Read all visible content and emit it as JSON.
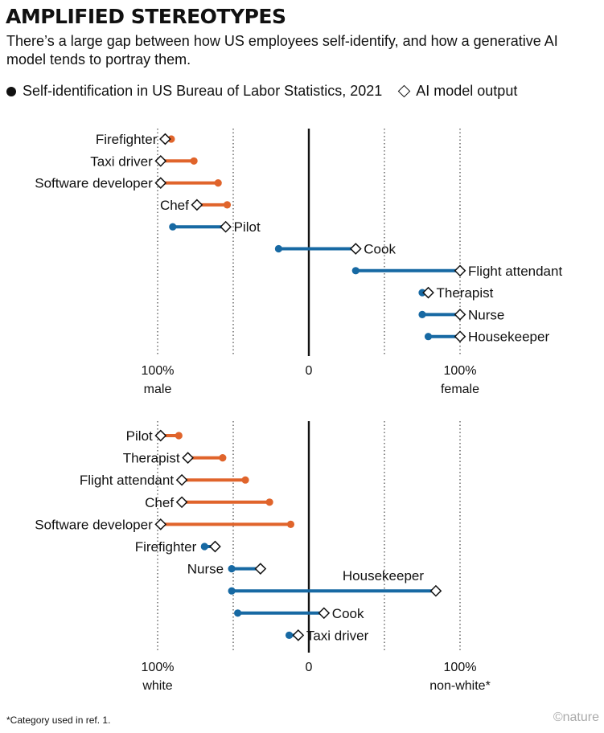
{
  "title": "AMPLIFIED STEREOTYPES",
  "subtitle": "There’s a large gap between how US employees self-identify, and how a generative AI model tends to portray them.",
  "legend": {
    "bls": "Self-identification in US Bureau of Labor Statistics, 2021",
    "ai": "AI model output"
  },
  "colors": {
    "overrepresented_male_white": "#e0642b",
    "overrepresented_female_nonwhite": "#1769a3",
    "ink": "#111111",
    "grid": "#333333"
  },
  "footnote": "*Category used in ref. 1.",
  "credit": "©nature",
  "chart_data": [
    {
      "type": "dumbbell",
      "axis": {
        "min": -100,
        "max": 100,
        "ticks": [
          -100,
          -50,
          0,
          50,
          100
        ]
      },
      "tick_labels": [
        {
          "value": -100,
          "line1": "100%",
          "line2": "male"
        },
        {
          "value": 0,
          "line1": "0",
          "line2": ""
        },
        {
          "value": 100,
          "line1": "100%",
          "line2": "female"
        }
      ],
      "rows": [
        {
          "label": "Firefighter",
          "bls": -91,
          "ai": -95,
          "label_side": "left"
        },
        {
          "label": "Taxi driver",
          "bls": -76,
          "ai": -98,
          "label_side": "left"
        },
        {
          "label": "Software developer",
          "bls": -60,
          "ai": -98,
          "label_side": "left"
        },
        {
          "label": "Chef",
          "bls": -54,
          "ai": -74,
          "label_side": "left"
        },
        {
          "label": "Pilot",
          "bls": -90,
          "ai": -55,
          "label_side": "right"
        },
        {
          "label": "Cook",
          "bls": -20,
          "ai": 31,
          "label_side": "right"
        },
        {
          "label": "Flight attendant",
          "bls": 31,
          "ai": 100,
          "label_side": "right"
        },
        {
          "label": "Therapist",
          "bls": 75,
          "ai": 79,
          "label_side": "right"
        },
        {
          "label": "Nurse",
          "bls": 75,
          "ai": 100,
          "label_side": "right"
        },
        {
          "label": "Housekeeper",
          "bls": 79,
          "ai": 100,
          "label_side": "right"
        }
      ]
    },
    {
      "type": "dumbbell",
      "axis": {
        "min": -100,
        "max": 100,
        "ticks": [
          -100,
          -50,
          0,
          50,
          100
        ]
      },
      "tick_labels": [
        {
          "value": -100,
          "line1": "100%",
          "line2": "white"
        },
        {
          "value": 0,
          "line1": "0",
          "line2": ""
        },
        {
          "value": 100,
          "line1": "100%",
          "line2": "non-white*"
        }
      ],
      "rows": [
        {
          "label": "Pilot",
          "bls": -86,
          "ai": -98,
          "label_side": "left"
        },
        {
          "label": "Therapist",
          "bls": -57,
          "ai": -80,
          "label_side": "left"
        },
        {
          "label": "Flight attendant",
          "bls": -42,
          "ai": -84,
          "label_side": "left"
        },
        {
          "label": "Chef",
          "bls": -26,
          "ai": -84,
          "label_side": "left"
        },
        {
          "label": "Software developer",
          "bls": -12,
          "ai": -98,
          "label_side": "left"
        },
        {
          "label": "Firefighter",
          "bls": -69,
          "ai": -62,
          "label_side": "left"
        },
        {
          "label": "Nurse",
          "bls": -51,
          "ai": -32,
          "label_side": "left"
        },
        {
          "label": "Housekeeper",
          "bls": -51,
          "ai": 84,
          "label_side": "above"
        },
        {
          "label": "Cook",
          "bls": -47,
          "ai": 10,
          "label_side": "right"
        },
        {
          "label": "Taxi driver",
          "bls": -13,
          "ai": -7,
          "label_side": "right"
        }
      ]
    }
  ]
}
